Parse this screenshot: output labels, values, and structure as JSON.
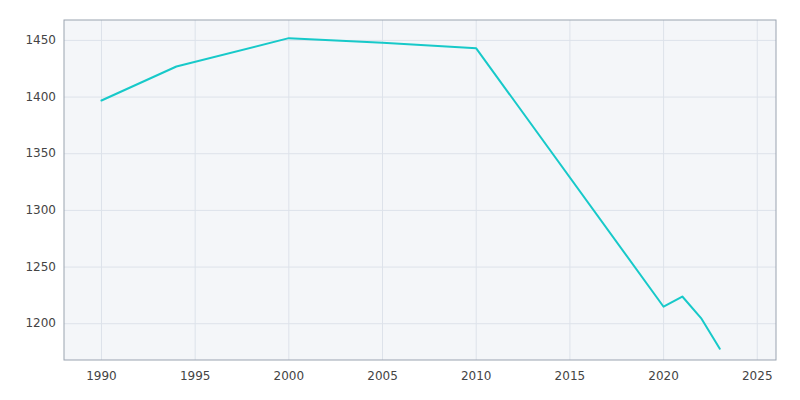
{
  "chart_data": {
    "type": "line",
    "x": [
      1990,
      1994,
      2000,
      2005,
      2010,
      2020,
      2021,
      2022,
      2023
    ],
    "values": [
      1397,
      1427,
      1452,
      1448,
      1443,
      1215,
      1224,
      1205,
      1178
    ],
    "color": "#17c9c9",
    "xlim": [
      1988,
      2026
    ],
    "ylim": [
      1168,
      1468
    ],
    "xticks": [
      1990,
      1995,
      2000,
      2005,
      2010,
      2015,
      2020,
      2025
    ],
    "yticks": [
      1200,
      1250,
      1300,
      1350,
      1400,
      1450
    ],
    "grid": true
  }
}
